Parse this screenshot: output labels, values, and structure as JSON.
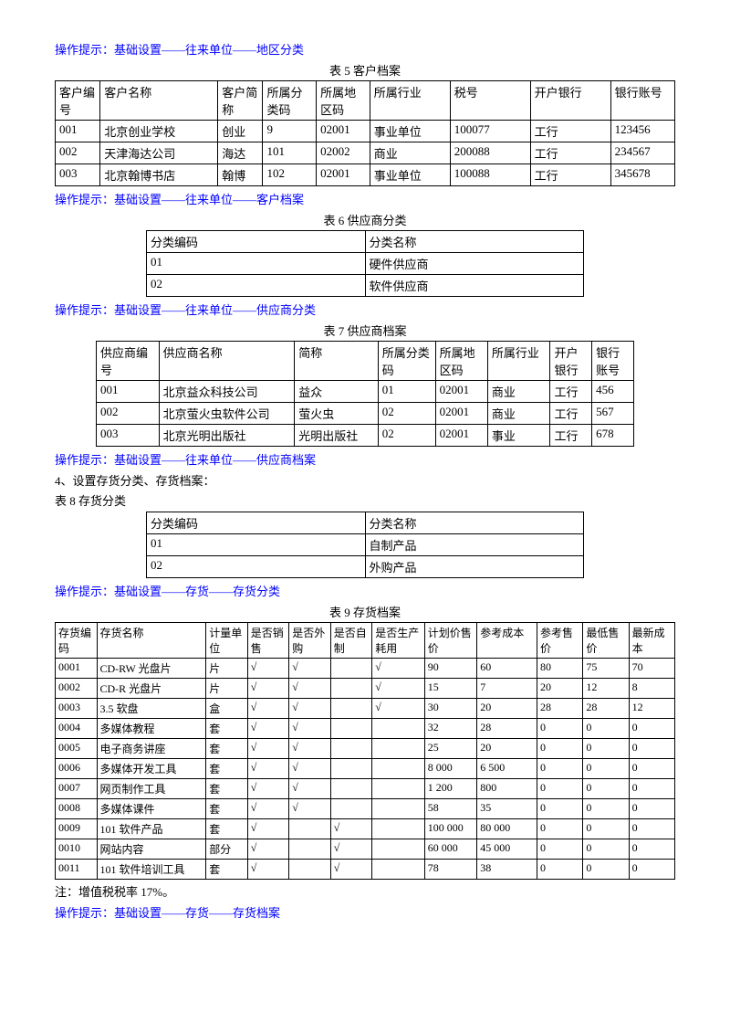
{
  "hint1": "操作提示：基础设置——往来单位——地区分类",
  "table5": {
    "caption": "表 5  客户档案",
    "headers": [
      "客户编号",
      "客户名称",
      "客户简称",
      "所属分类码",
      "所属地区码",
      "所属行业",
      "税号",
      "开户银行",
      "银行账号"
    ],
    "rows": [
      [
        "001",
        "北京创业学校",
        "创业",
        "9",
        "02001",
        "事业单位",
        "100077",
        "工行",
        "123456"
      ],
      [
        "002",
        "天津海达公司",
        "海达",
        "101",
        "02002",
        "商业",
        "200088",
        "工行",
        "234567"
      ],
      [
        "003",
        "北京翰博书店",
        "翰博",
        "102",
        "02001",
        "事业单位",
        "100088",
        "工行",
        "345678"
      ]
    ]
  },
  "hint2": "操作提示：基础设置——往来单位——客户档案",
  "table6": {
    "caption": "表 6  供应商分类",
    "headers": [
      "分类编码",
      "分类名称"
    ],
    "rows": [
      [
        "01",
        "硬件供应商"
      ],
      [
        "02",
        "软件供应商"
      ]
    ]
  },
  "hint3": "操作提示：基础设置——往来单位——供应商分类",
  "table7": {
    "caption": "表 7  供应商档案",
    "headers": [
      "供应商编号",
      "供应商名称",
      "简称",
      "所属分类码",
      "所属地区码",
      "所属行业",
      "开户银行",
      "银行账号"
    ],
    "rows": [
      [
        "001",
        "北京益众科技公司",
        "益众",
        "01",
        "02001",
        "商业",
        "工行",
        "456"
      ],
      [
        "002",
        "北京萤火虫软件公司",
        "萤火虫",
        "02",
        "02001",
        "商业",
        "工行",
        "567"
      ],
      [
        "003",
        "北京光明出版社",
        "光明出版社",
        "02",
        "02001",
        "事业",
        "工行",
        "678"
      ]
    ]
  },
  "hint4": "操作提示：基础设置——往来单位——供应商档案",
  "section4": "4、设置存货分类、存货档案：",
  "table8caption": "表 8  存货分类",
  "table8": {
    "headers": [
      "分类编码",
      "分类名称"
    ],
    "rows": [
      [
        "01",
        "自制产品"
      ],
      [
        "02",
        "外购产品"
      ]
    ]
  },
  "hint5": "操作提示：基础设置——存货——存货分类",
  "table9": {
    "caption": "表 9  存货档案",
    "headers": [
      "存货编码",
      "存货名称",
      "计量单位",
      "是否销售",
      "是否外购",
      "是否自制",
      "是否生产耗用",
      "计划价售价",
      "参考成本",
      "参考售价",
      "最低售价",
      "最新成本"
    ],
    "rows": [
      [
        "0001",
        "CD-RW 光盘片",
        "片",
        "√",
        "√",
        "",
        "√",
        "90",
        "60",
        "80",
        "75",
        "70"
      ],
      [
        "0002",
        "CD-R 光盘片",
        "片",
        "√",
        "√",
        "",
        "√",
        "15",
        "7",
        "20",
        "12",
        "8"
      ],
      [
        "0003",
        "3.5 软盘",
        "盒",
        "√",
        "√",
        "",
        "√",
        "30",
        "20",
        "28",
        "28",
        "12"
      ],
      [
        "0004",
        "多媒体教程",
        "套",
        "√",
        "√",
        "",
        "",
        "32",
        "28",
        "0",
        "0",
        "0"
      ],
      [
        "0005",
        "电子商务讲座",
        "套",
        "√",
        "√",
        "",
        "",
        "25",
        "20",
        "0",
        "0",
        "0"
      ],
      [
        "0006",
        "多媒体开发工具",
        "套",
        "√",
        "√",
        "",
        "",
        "8 000",
        "6 500",
        "0",
        "0",
        "0"
      ],
      [
        "0007",
        "网页制作工具",
        "套",
        "√",
        "√",
        "",
        "",
        "1 200",
        "800",
        "0",
        "0",
        "0"
      ],
      [
        "0008",
        "多媒体课件",
        "套",
        "√",
        "√",
        "",
        "",
        "58",
        "35",
        "0",
        "0",
        "0"
      ],
      [
        "0009",
        "101 软件产品",
        "套",
        "√",
        "",
        "√",
        "",
        "100 000",
        "80 000",
        "0",
        "0",
        "0"
      ],
      [
        "0010",
        "网站内容",
        "部分",
        "√",
        "",
        "√",
        "",
        "60 000",
        "45 000",
        "0",
        "0",
        "0"
      ],
      [
        "0011",
        "101 软件培训工具",
        "套",
        "√",
        "",
        "√",
        "",
        "78",
        "38",
        "0",
        "0",
        "0"
      ]
    ]
  },
  "note": "注：增值税税率 17%。",
  "hint6": "操作提示：基础设置——存货——存货档案"
}
